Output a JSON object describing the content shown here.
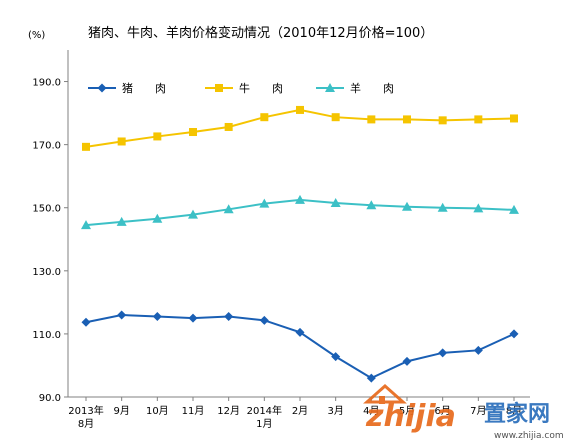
{
  "chart_data": {
    "type": "line",
    "title": "猪肉、牛肉、羊肉价格变动情况（2010年12月价格=100）",
    "unit_label": "(%)",
    "categories": [
      [
        "2013年",
        "8月"
      ],
      [
        "9月"
      ],
      [
        "10月"
      ],
      [
        "11月"
      ],
      [
        "12月"
      ],
      [
        "2014年",
        "1月"
      ],
      [
        "2月"
      ],
      [
        "3月"
      ],
      [
        "4月"
      ],
      [
        "5月"
      ],
      [
        "6月"
      ],
      [
        "7月"
      ],
      [
        "8月"
      ]
    ],
    "yticks": [
      "90.0",
      "110.0",
      "130.0",
      "150.0",
      "170.0",
      "190.0"
    ],
    "ylim": [
      90,
      200
    ],
    "grid": false,
    "legend_position": "top-left",
    "series": [
      {
        "name": "猪　　肉",
        "marker": "diamond",
        "color": "#1a5fb4",
        "values": [
          113.7,
          116.0,
          115.5,
          115.0,
          115.5,
          114.3,
          110.5,
          102.8,
          96.0,
          101.3,
          104.0,
          104.8,
          110.0
        ]
      },
      {
        "name": "牛　　肉",
        "marker": "square",
        "color": "#f5c400",
        "values": [
          169.3,
          171.0,
          172.6,
          174.0,
          175.6,
          178.7,
          181.0,
          178.7,
          178.0,
          178.0,
          177.7,
          178.0,
          178.3
        ]
      },
      {
        "name": "羊　　肉",
        "marker": "triangle",
        "color": "#3cc0c6",
        "values": [
          144.5,
          145.5,
          146.5,
          147.8,
          149.5,
          151.3,
          152.5,
          151.5,
          150.8,
          150.3,
          150.0,
          149.8,
          149.3
        ]
      }
    ]
  },
  "watermark": {
    "brand_latin": "zhijia",
    "brand_cn": "置家网",
    "url": "www.zhijia.com",
    "colors": {
      "latin": "#e86a1c",
      "cn": "#2a6ebb"
    }
  }
}
